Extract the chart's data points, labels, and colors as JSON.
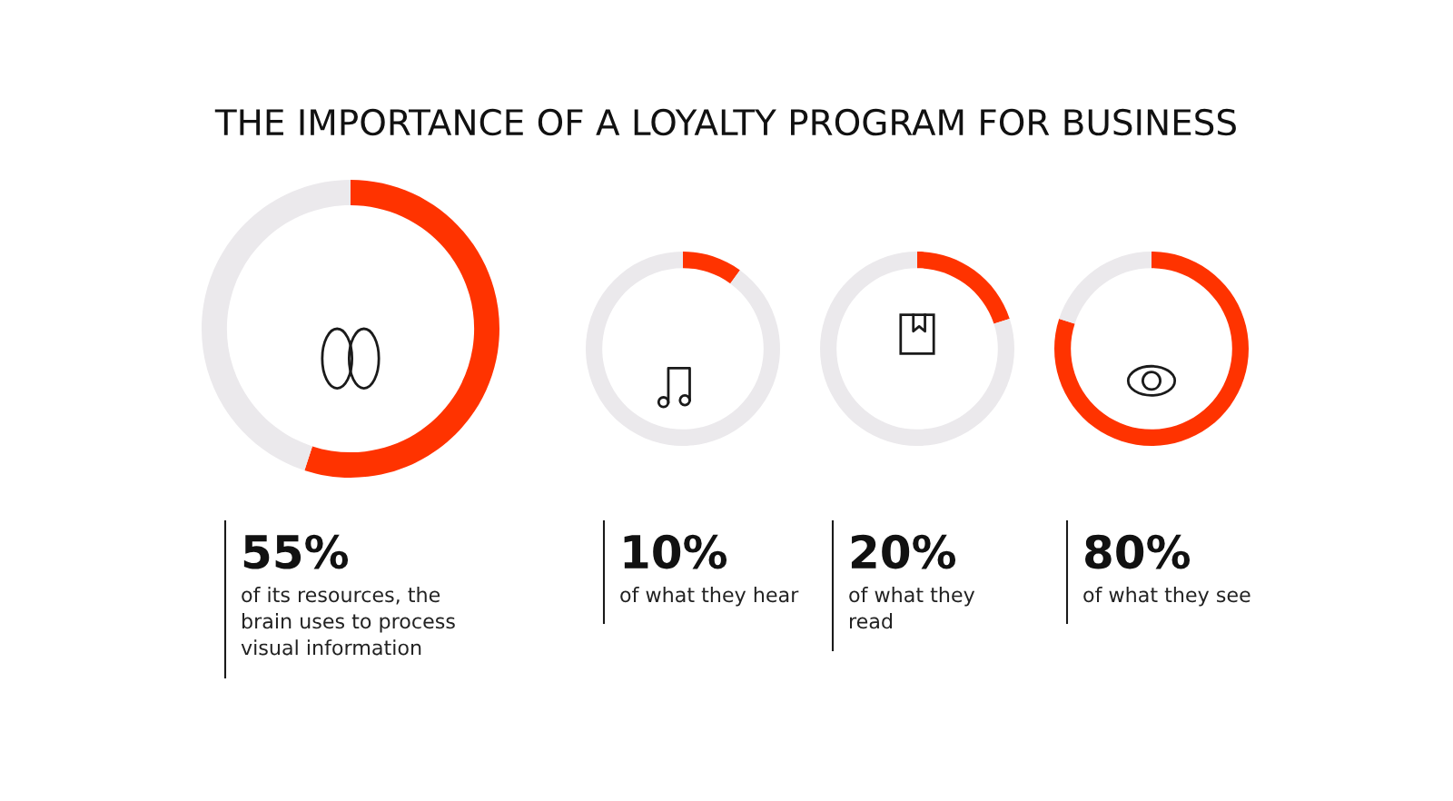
{
  "chart_data": [
    {
      "type": "donut",
      "title": "THE IMPORTANCE OF A LOYALTY PROGRAM FOR BUSINESS",
      "categories": [
        null,
        null
      ],
      "values": [
        55,
        45
      ],
      "colors": [
        "#ff3300",
        "#ebe9ec"
      ],
      "annotations": [
        "55%",
        "of its resources, the\nbrain uses to process\nvisual information"
      ]
    },
    {
      "type": "donut",
      "categories": [
        null,
        null
      ],
      "values": [
        10,
        90
      ],
      "colors": [
        "#ff3300",
        "#ebe9ec"
      ],
      "annotations": [
        "10%",
        "of what they hear"
      ]
    },
    {
      "type": "donut",
      "categories": [
        null,
        null
      ],
      "values": [
        20,
        80
      ],
      "colors": [
        "#ff3300",
        "#ebe9ec"
      ],
      "annotations": [
        "20%",
        "of what they\nread"
      ]
    },
    {
      "type": "donut",
      "categories": [
        null,
        null
      ],
      "values": [
        80,
        20
      ],
      "colors": [
        "#ff3300",
        "#ebe9ec"
      ],
      "annotations": [
        "80%",
        "of what they see"
      ]
    }
  ]
}
